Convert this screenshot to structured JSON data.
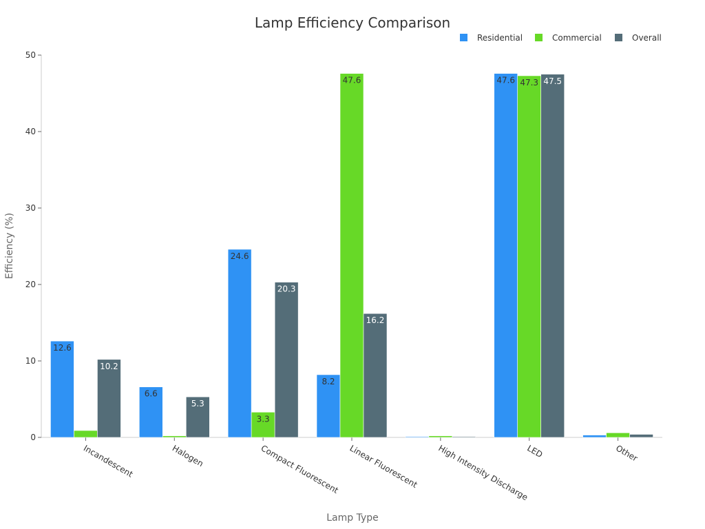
{
  "chart_data": {
    "type": "bar",
    "title": "Lamp Efficiency Comparison",
    "xlabel": "Lamp Type",
    "ylabel": "Efficiency (%)",
    "ylim": [
      0,
      50
    ],
    "yticks": [
      0,
      10,
      20,
      30,
      40,
      50
    ],
    "grid": false,
    "legend_position": "top-right",
    "categories": [
      "Incandescent",
      "Halogen",
      "Compact Fluorescent",
      "Linear Fluorescent",
      "High Intensity Discharge",
      "LED",
      "Other"
    ],
    "series": [
      {
        "name": "Residential",
        "color": "#2f92f4",
        "values": [
          12.6,
          6.6,
          24.6,
          8.2,
          0.1,
          47.6,
          0.3
        ],
        "labels": [
          "12.6",
          "6.6",
          "24.6",
          "8.2",
          "",
          "47.6",
          ""
        ]
      },
      {
        "name": "Commercial",
        "color": "#67d927",
        "values": [
          0.9,
          0.2,
          3.3,
          47.6,
          0.2,
          47.3,
          0.6
        ],
        "labels": [
          "",
          "",
          "3.3",
          "47.6",
          "",
          "47.3",
          ""
        ]
      },
      {
        "name": "Overall",
        "color": "#546d78",
        "values": [
          10.2,
          5.3,
          20.3,
          16.2,
          0.1,
          47.5,
          0.4
        ],
        "labels": [
          "10.2",
          "5.3",
          "20.3",
          "16.2",
          "",
          "47.5",
          ""
        ]
      }
    ]
  }
}
